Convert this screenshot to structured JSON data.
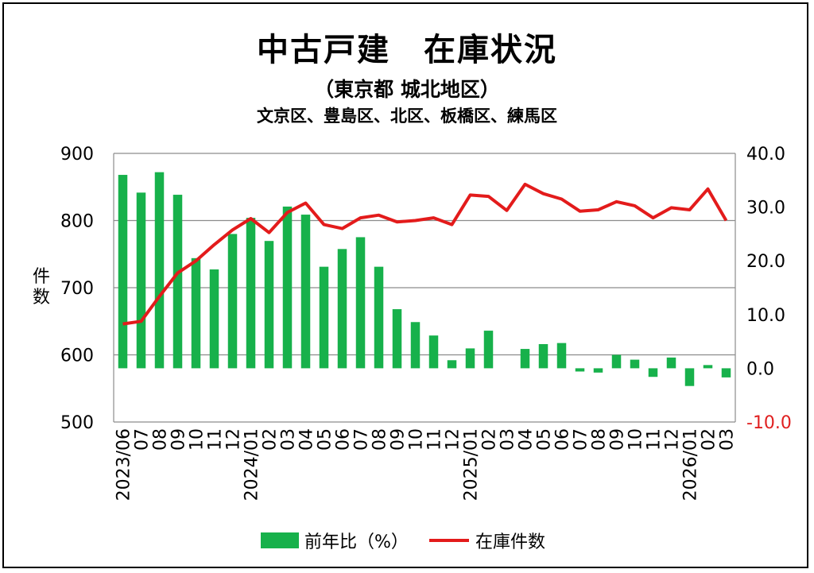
{
  "title": "中古戸建　在庫状況",
  "subtitle": "（東京都 城北地区）",
  "subtitle2": "文京区、豊島区、北区、板橋区、練馬区",
  "colors": {
    "bar": "#17b14b",
    "line": "#e31b1b",
    "grid": "#8c8c8c",
    "neg_tick": "#e02020"
  },
  "chart_data": {
    "type": "bar",
    "categories": [
      "2023/06",
      "07",
      "08",
      "09",
      "10",
      "11",
      "12",
      "2024/01",
      "02",
      "03",
      "04",
      "05",
      "06",
      "07",
      "08",
      "09",
      "10",
      "11",
      "12",
      "2025/01",
      "02",
      "03",
      "04",
      "05",
      "06",
      "07",
      "08",
      "09",
      "10",
      "11",
      "12",
      "2026/01",
      "02",
      "03"
    ],
    "series": [
      {
        "name": "前年比（%）",
        "type": "bar",
        "axis": "right",
        "values": [
          36.0,
          32.7,
          36.5,
          32.3,
          20.5,
          18.4,
          25.0,
          28.0,
          23.7,
          30.1,
          28.6,
          18.9,
          22.2,
          24.4,
          18.9,
          11.0,
          8.6,
          6.1,
          1.5,
          3.7,
          7.0,
          0.0,
          3.6,
          4.5,
          4.7,
          -0.6,
          -0.8,
          2.5,
          1.6,
          -1.6,
          2.0,
          -3.3,
          0.6,
          -1.7
        ]
      },
      {
        "name": "在庫件数",
        "type": "line",
        "axis": "left",
        "values": [
          646,
          650,
          687,
          722,
          740,
          764,
          786,
          803,
          782,
          812,
          826,
          794,
          788,
          804,
          808,
          798,
          800,
          804,
          794,
          838,
          836,
          815,
          854,
          840,
          832,
          814,
          816,
          828,
          822,
          804,
          819,
          816,
          847,
          800
        ]
      }
    ],
    "y_left": {
      "label": "件数",
      "min": 500,
      "max": 900,
      "ticks": [
        "500",
        "600",
        "700",
        "800",
        "900"
      ]
    },
    "y_right": {
      "min": -10,
      "max": 40,
      "ticks": [
        "-10.0",
        "0.0",
        "10.0",
        "20.0",
        "30.0",
        "40.0"
      ]
    },
    "grid": true,
    "legend_position": "bottom"
  }
}
